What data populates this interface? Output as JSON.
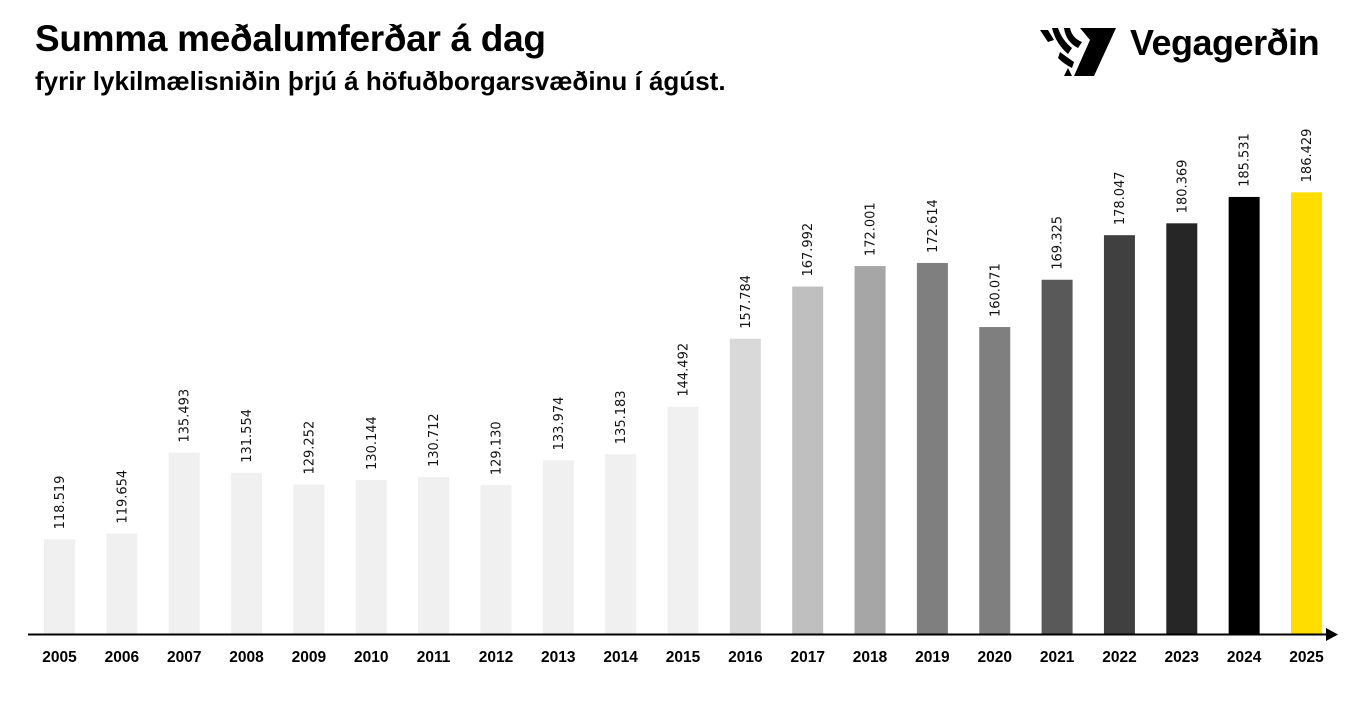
{
  "header": {
    "title": "Summa meðalumferðar á dag",
    "subtitle": "fyrir lykilmælisniðin þrjú á höfuðborgarsvæðinu í ágúst."
  },
  "logo": {
    "text": "Vegagerðin",
    "icon": "road-stripes-logo"
  },
  "chart_data": {
    "type": "bar",
    "title": "Summa meðalumferðar á dag",
    "subtitle": "fyrir lykilmælisniðin þrjú á höfuðborgarsvæðinu í ágúst.",
    "xlabel": "",
    "ylabel": "",
    "ylim": [
      100,
      190
    ],
    "grid": false,
    "legend": "none",
    "categories": [
      "2005",
      "2006",
      "2007",
      "2008",
      "2009",
      "2010",
      "2011",
      "2012",
      "2013",
      "2014",
      "2015",
      "2016",
      "2017",
      "2018",
      "2019",
      "2020",
      "2021",
      "2022",
      "2023",
      "2024",
      "2025"
    ],
    "values": [
      118.519,
      119.654,
      135.493,
      131.554,
      129.252,
      130.144,
      130.712,
      129.13,
      133.974,
      135.183,
      144.492,
      157.784,
      167.992,
      172.001,
      172.614,
      160.071,
      169.325,
      178.047,
      180.369,
      185.531,
      186.429
    ],
    "value_labels": [
      "118.519",
      "119.654",
      "135.493",
      "131.554",
      "129.252",
      "130.144",
      "130.712",
      "129.130",
      "133.974",
      "135.183",
      "144.492",
      "157.784",
      "167.992",
      "172.001",
      "172.614",
      "160.071",
      "169.325",
      "178.047",
      "180.369",
      "185.531",
      "186.429"
    ],
    "colors": [
      "#f0f0f0",
      "#f0f0f0",
      "#f0f0f0",
      "#f0f0f0",
      "#f0f0f0",
      "#f0f0f0",
      "#f0f0f0",
      "#f0f0f0",
      "#f0f0f0",
      "#f0f0f0",
      "#f0f0f0",
      "#d9d9d9",
      "#bfbfbf",
      "#a6a6a6",
      "#7f7f7f",
      "#7f7f7f",
      "#595959",
      "#404040",
      "#262626",
      "#000000",
      "#ffdd00"
    ]
  }
}
